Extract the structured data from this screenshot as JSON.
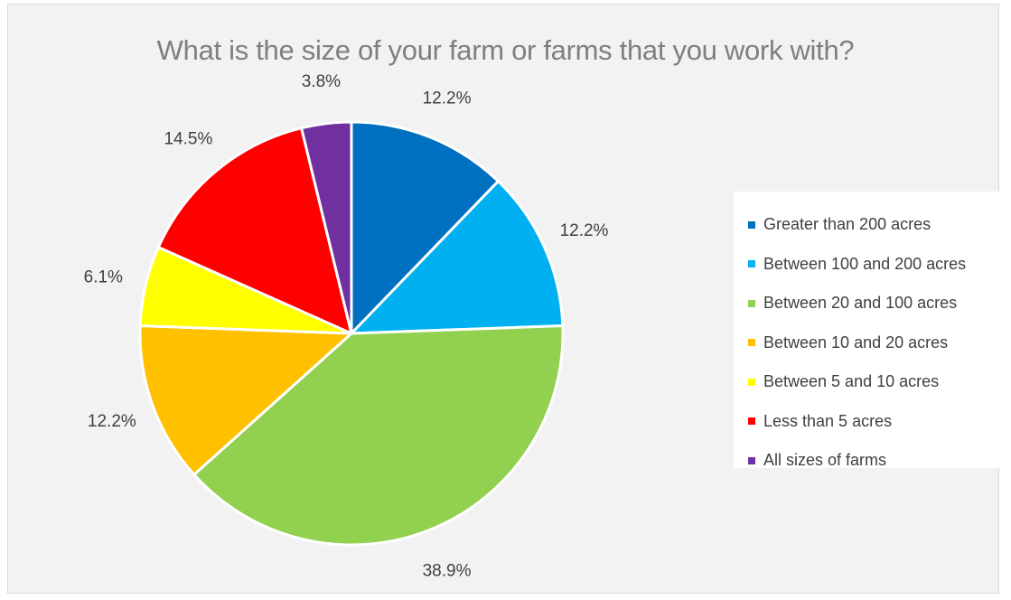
{
  "chart_data": {
    "type": "pie",
    "title": "What is the size of your farm or farms that you work with?",
    "slices": [
      {
        "label": "Greater than 200 acres",
        "value": 12.2,
        "data_label": "12.2%",
        "color": "#0070c0"
      },
      {
        "label": "Between 100 and 200 acres",
        "value": 12.2,
        "data_label": "12.2%",
        "color": "#00b0f0"
      },
      {
        "label": "Between 20 and 100 acres",
        "value": 38.9,
        "data_label": "38.9%",
        "color": "#92d050"
      },
      {
        "label": "Between 10 and 20 acres",
        "value": 12.2,
        "data_label": "12.2%",
        "color": "#ffc000"
      },
      {
        "label": "Between 5 and 10 acres",
        "value": 6.1,
        "data_label": "6.1%",
        "color": "#ffff00"
      },
      {
        "label": "Less than 5 acres",
        "value": 14.5,
        "data_label": "14.5%",
        "color": "#ff0000"
      },
      {
        "label": "All sizes of farms",
        "value": 3.8,
        "data_label": "3.8%",
        "color": "#7030a0"
      }
    ],
    "legend_position": "right"
  }
}
